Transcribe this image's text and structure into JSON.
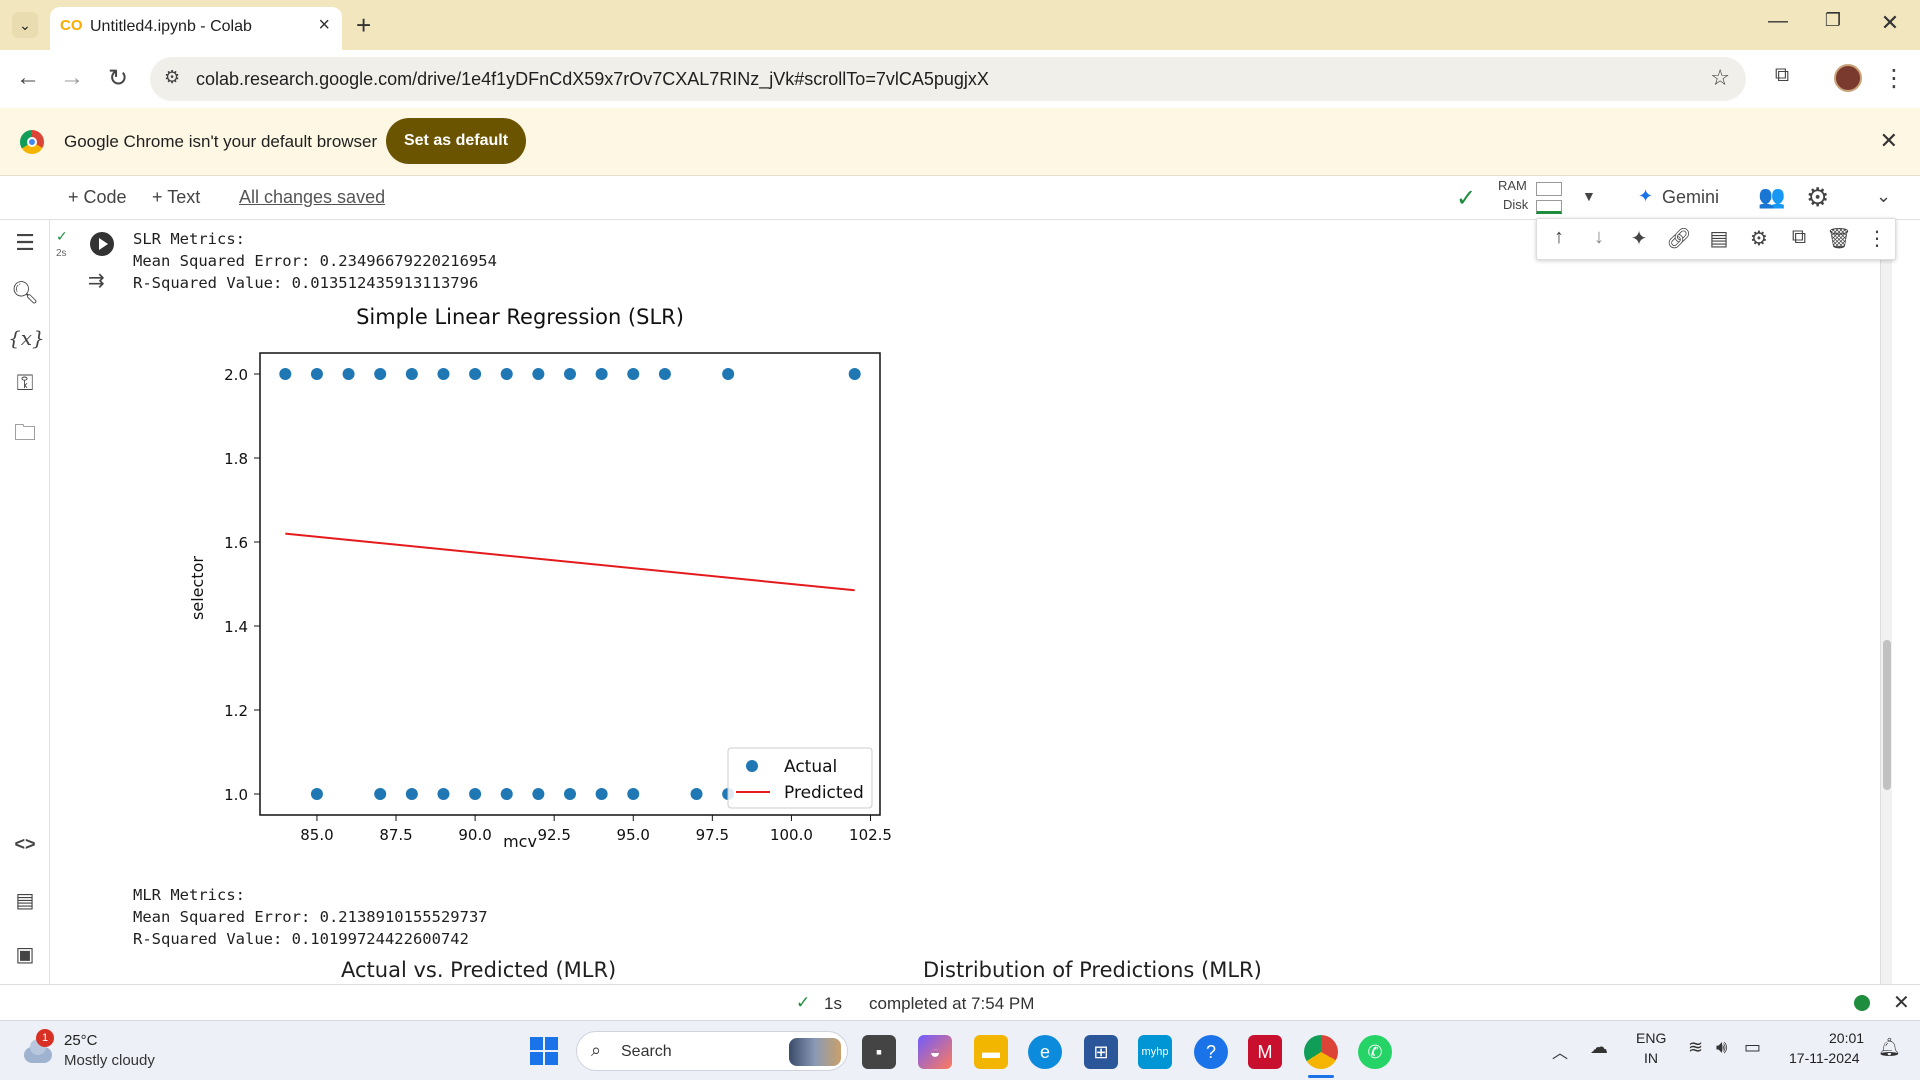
{
  "browser": {
    "tab_title": "Untitled4.ipynb - Colab",
    "url": "colab.research.google.com/drive/1e4f1yDFnCdX59x7rOv7CXAL7RINz_jVk#scrollTo=7vlCA5pugjxX"
  },
  "infobar": {
    "message": "Google Chrome isn't your default browser",
    "button": "Set as default"
  },
  "colab": {
    "add_code": "+ Code",
    "add_text": "+ Text",
    "save_status": "All changes saved",
    "ram_label": "RAM",
    "disk_label": "Disk",
    "gemini_label": "Gemini"
  },
  "cell": {
    "exec_time": "2s",
    "slr_lines": [
      "SLR Metrics:",
      "Mean Squared Error: 0.23496679220216954",
      "R-Squared Value: 0.013512435913113796"
    ],
    "mlr_lines": [
      "MLR Metrics:",
      "Mean Squared Error: 0.2138910155529737",
      "R-Squared Value: 0.10199724422600742"
    ],
    "next_title_left": "Actual vs. Predicted (MLR)",
    "next_title_right": "Distribution of Predictions (MLR)"
  },
  "chart_data": {
    "type": "scatter",
    "title": "Simple Linear Regression (SLR)",
    "xlabel": "mcv",
    "ylabel": "selector",
    "xlim": [
      83.2,
      102.8
    ],
    "ylim": [
      0.95,
      2.05
    ],
    "xticks": [
      "85.0",
      "87.5",
      "90.0",
      "92.5",
      "95.0",
      "97.5",
      "100.0",
      "102.5"
    ],
    "xtick_values": [
      85,
      87.5,
      90,
      92.5,
      95,
      97.5,
      100,
      102.5
    ],
    "yticks": [
      "1.0",
      "1.2",
      "1.4",
      "1.6",
      "1.8",
      "2.0"
    ],
    "ytick_values": [
      1.0,
      1.2,
      1.4,
      1.6,
      1.8,
      2.0
    ],
    "legend_position": "lower-right",
    "series": [
      {
        "name": "Actual",
        "kind": "scatter",
        "color": "#1f77b4",
        "x": [
          84,
          85,
          86,
          87,
          88,
          89,
          90,
          91,
          92,
          93,
          94,
          95,
          96,
          98,
          102,
          85,
          87,
          88,
          89,
          90,
          91,
          92,
          93,
          94,
          95,
          97,
          98
        ],
        "y": [
          2,
          2,
          2,
          2,
          2,
          2,
          2,
          2,
          2,
          2,
          2,
          2,
          2,
          2,
          2,
          1,
          1,
          1,
          1,
          1,
          1,
          1,
          1,
          1,
          1,
          1,
          1
        ]
      },
      {
        "name": "Predicted",
        "kind": "line",
        "color": "#e41a1c",
        "x": [
          84,
          102
        ],
        "y": [
          1.62,
          1.485
        ]
      }
    ]
  },
  "statusbar": {
    "check_time": "1s",
    "completed": "completed at 7:54 PM"
  },
  "taskbar": {
    "weather_temp": "25°C",
    "weather_desc": "Mostly cloudy",
    "weather_badge": "1",
    "search_placeholder": "Search",
    "lang_line1": "ENG",
    "lang_line2": "IN",
    "time": "20:01",
    "date": "17-11-2024"
  }
}
